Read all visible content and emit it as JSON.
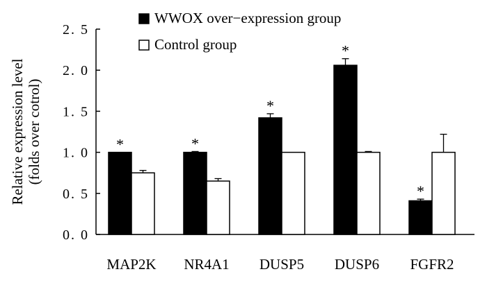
{
  "chart_data": {
    "type": "bar",
    "categories": [
      "MAP2K",
      "NR4A1",
      "DUSP5",
      "DUSP6",
      "FGFR2"
    ],
    "series": [
      {
        "name": "WWOX over−expression group",
        "values": [
          1.0,
          1.0,
          1.42,
          2.06,
          0.41
        ],
        "errors": [
          0.0,
          0.01,
          0.05,
          0.08,
          0.02
        ],
        "significance": [
          "*",
          "*",
          "*",
          "*",
          "*"
        ],
        "color": "#000000"
      },
      {
        "name": "Control group",
        "values": [
          0.75,
          0.65,
          1.0,
          1.0,
          1.0
        ],
        "errors": [
          0.03,
          0.03,
          0.0,
          0.01,
          0.22
        ],
        "significance": [
          "",
          "",
          "",
          "",
          ""
        ],
        "color": "#ffffff"
      }
    ],
    "y_ticks": [
      "0. 0",
      "0. 5",
      "1. 0",
      "1. 5",
      "2. 0",
      "2. 5"
    ],
    "ylim": [
      0,
      2.5
    ],
    "ylabel_line1": "Relative expression level",
    "ylabel_line2": "(folds over cotrol)",
    "xlabel": "",
    "title": "",
    "grid": false,
    "legend_position": "top-left"
  }
}
